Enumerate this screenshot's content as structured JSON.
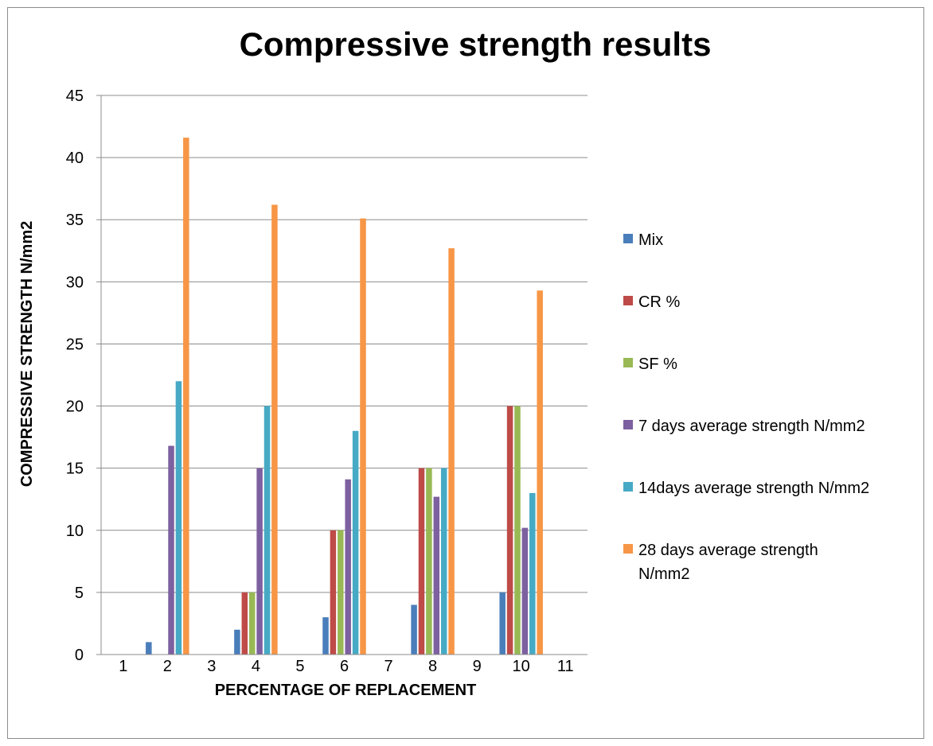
{
  "chart_data": {
    "type": "bar",
    "title": "Compressive strength results",
    "xlabel": "PERCENTAGE OF REPLACEMENT",
    "ylabel": "COMPRESSIVE STRENGTH N/mm2",
    "categories": [
      "1",
      "2",
      "3",
      "4",
      "5",
      "6",
      "7",
      "8",
      "9",
      "10",
      "11"
    ],
    "ylim": [
      0,
      45
    ],
    "yticks": [
      0,
      5,
      10,
      15,
      20,
      25,
      30,
      35,
      40,
      45
    ],
    "grid": "horizontal",
    "legend_position": "right",
    "series": [
      {
        "name": "Mix",
        "color": "#4A7EBB",
        "values": [
          null,
          1,
          null,
          2,
          null,
          3,
          null,
          4,
          null,
          5,
          null
        ]
      },
      {
        "name": "CR %",
        "color": "#BE4B48",
        "values": [
          null,
          0,
          null,
          5,
          null,
          10,
          null,
          15,
          null,
          20,
          null
        ]
      },
      {
        "name": "SF %",
        "color": "#98B954",
        "values": [
          null,
          0,
          null,
          5,
          null,
          10,
          null,
          15,
          null,
          20,
          null
        ]
      },
      {
        "name": "7 days average strength N/mm2",
        "color": "#7D60A0",
        "values": [
          null,
          16.8,
          null,
          15,
          null,
          14.1,
          null,
          12.7,
          null,
          10.2,
          null
        ]
      },
      {
        "name": "14days average strength N/mm2",
        "color": "#46AAC5",
        "values": [
          null,
          22,
          null,
          20,
          null,
          18,
          null,
          15,
          null,
          13,
          null
        ]
      },
      {
        "name": "28 days average strength N/mm2",
        "color": "#F79646",
        "values": [
          null,
          41.6,
          null,
          36.2,
          null,
          35.1,
          null,
          32.7,
          null,
          29.3,
          null
        ]
      }
    ]
  }
}
